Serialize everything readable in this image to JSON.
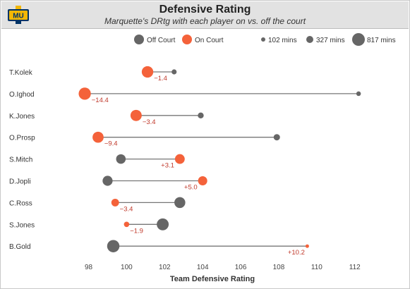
{
  "header": {
    "logo_text": "MU",
    "title": "Defensive Rating",
    "subtitle": "Marquette's DRtg with each player on vs. off the court"
  },
  "legend": {
    "off_label": "Off Court",
    "on_label": "On Court",
    "size_labels": [
      "102 mins",
      "327 mins",
      "817 mins"
    ]
  },
  "colors": {
    "off": "#666666",
    "on": "#f4623a",
    "diff": "#c0392b",
    "line": "#777777"
  },
  "chart_data": {
    "type": "dumbbell",
    "xlabel": "Team Defensive Rating",
    "xlim": [
      96.2,
      112.9
    ],
    "xticks": [
      98,
      100,
      102,
      104,
      106,
      108,
      110,
      112
    ],
    "size_legend_minutes": [
      102,
      327,
      817
    ],
    "players": [
      {
        "name": "T.Kolek",
        "off": 102.5,
        "on": 101.1,
        "diff": "−1.4",
        "on_mins": 640,
        "off_mins": 100
      },
      {
        "name": "O.Ighod",
        "off": 112.2,
        "on": 97.8,
        "diff": "−14.4",
        "on_mins": 740,
        "off_mins": 90
      },
      {
        "name": "K.Jones",
        "off": 103.9,
        "on": 100.5,
        "diff": "−3.4",
        "on_mins": 600,
        "off_mins": 130
      },
      {
        "name": "O.Prosp",
        "off": 107.9,
        "on": 98.5,
        "diff": "−9.4",
        "on_mins": 580,
        "off_mins": 150
      },
      {
        "name": "S.Mitch",
        "off": 99.7,
        "on": 102.8,
        "diff": "+3.1",
        "on_mins": 420,
        "off_mins": 400
      },
      {
        "name": "D.Jopli",
        "off": 99.0,
        "on": 104.0,
        "diff": "+5.0",
        "on_mins": 360,
        "off_mins": 450
      },
      {
        "name": "C.Ross",
        "off": 102.8,
        "on": 99.4,
        "diff": "−3.4",
        "on_mins": 230,
        "off_mins": 560
      },
      {
        "name": "S.Jones",
        "off": 101.9,
        "on": 100.0,
        "diff": "−1.9",
        "on_mins": 110,
        "off_mins": 700
      },
      {
        "name": "B.Gold",
        "off": 99.3,
        "on": 109.5,
        "diff": "+10.2",
        "on_mins": 80,
        "off_mins": 760
      }
    ]
  }
}
